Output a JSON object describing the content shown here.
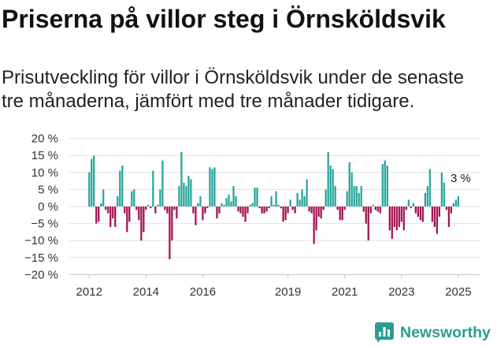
{
  "chart_data": {
    "type": "bar",
    "title": "Priserna på villor steg i Örnsköldsvik",
    "subtitle_lines": [
      "Prisutveckling för villor i Örnsköldsvik under de senaste",
      "tre månaderna, jämfört med tre månader tidigare."
    ],
    "x_start": 2012,
    "x_step": 0.0833333,
    "xlim": [
      2011.3,
      2025.78
    ],
    "ylim": [
      -20,
      20
    ],
    "grid": true,
    "values": [
      10,
      14,
      15,
      -5,
      -4.5,
      1,
      5,
      -1,
      -2,
      -6,
      -3.5,
      -6,
      3,
      10.5,
      12,
      -2,
      -7.5,
      -4.5,
      4.5,
      5,
      -1,
      -4,
      -10,
      -7.5,
      -1,
      0.5,
      -0.5,
      10.5,
      -2,
      0.5,
      5,
      13.5,
      -1,
      -2,
      -15.5,
      -10,
      -1,
      -3.5,
      6,
      16,
      7,
      6,
      9,
      8,
      -2,
      -5.5,
      1,
      3,
      -4,
      -2,
      -0.5,
      11.5,
      11,
      11.5,
      -3.5,
      -2,
      1,
      0.5,
      2.5,
      3.5,
      1.5,
      6,
      3,
      -1.5,
      -2,
      -3,
      -4.5,
      -2,
      0.5,
      1,
      5.5,
      5.5,
      -0.5,
      -2,
      -2,
      -1.5,
      -0.5,
      3,
      0.5,
      4.5,
      0.5,
      -0.5,
      -4.5,
      -4,
      -2,
      2,
      -1,
      -2,
      4,
      2,
      5,
      3,
      8,
      -1.5,
      -2,
      -11,
      -7,
      -3,
      -3.5,
      -1,
      5,
      16,
      12,
      11,
      6,
      -1,
      -4,
      -4,
      -1,
      4.5,
      13,
      10,
      6,
      6,
      4,
      6,
      -1.5,
      -5,
      -10,
      -2,
      0.5,
      -1,
      -1.5,
      -2,
      12.5,
      13.5,
      12,
      -7,
      -9.5,
      -6,
      -7,
      -6,
      -4.5,
      -7,
      -1,
      2,
      -0.5,
      1,
      -2,
      -3,
      -4,
      -4.5,
      4,
      6,
      11,
      -4.5,
      -6,
      -8,
      -3,
      10,
      7,
      -1,
      -6,
      -2,
      1,
      2,
      3
    ],
    "x_ticks": [
      {
        "value": 2012,
        "label": "2012"
      },
      {
        "value": 2014,
        "label": "2014"
      },
      {
        "value": 2016,
        "label": "2016"
      },
      {
        "value": 2019,
        "label": "2019"
      },
      {
        "value": 2021,
        "label": "2021"
      },
      {
        "value": 2023,
        "label": "2023"
      },
      {
        "value": 2025,
        "label": "2025"
      }
    ],
    "y_ticks": [
      {
        "value": 20,
        "label": "20 %"
      },
      {
        "value": 15,
        "label": "15 %"
      },
      {
        "value": 10,
        "label": "10 %"
      },
      {
        "value": 5,
        "label": "5 %"
      },
      {
        "value": 0,
        "label": "0 %"
      },
      {
        "value": -5,
        "label": "−5 %"
      },
      {
        "value": -10,
        "label": "−10 %"
      },
      {
        "value": -15,
        "label": "−15 %"
      },
      {
        "value": -20,
        "label": "−20 %"
      }
    ],
    "annotation": {
      "index": 156,
      "text": "3 %"
    }
  },
  "brand": {
    "name": "Newsworthy"
  },
  "colors": {
    "positive": "#22a398",
    "negative": "#a10d4b",
    "gridline": "#e3e3e3",
    "axis": "#c6c6c6",
    "brand": "#2a9d92"
  }
}
